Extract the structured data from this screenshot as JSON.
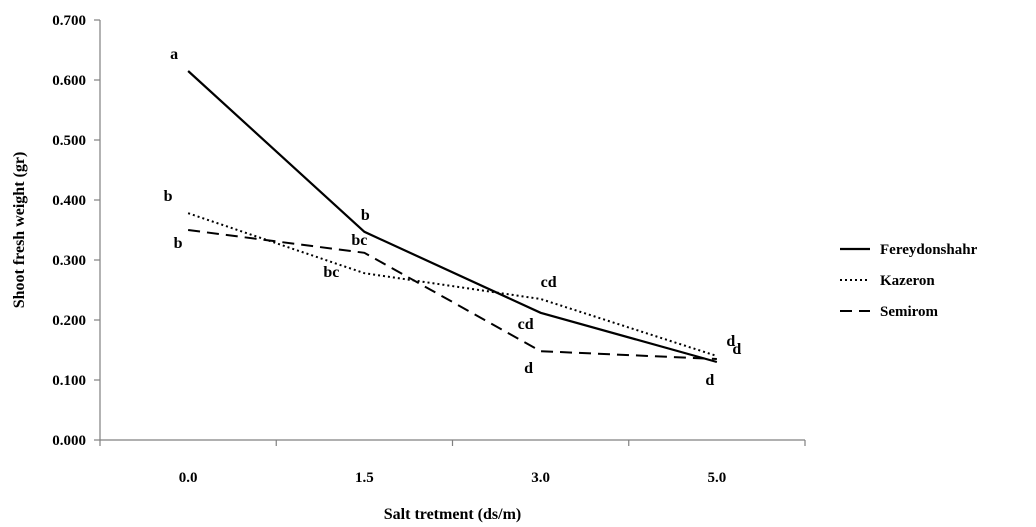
{
  "chart_data": {
    "type": "line",
    "xlabel": "Salt tretment  (ds/m)",
    "ylabel": "Shoot fresh weight (gr)",
    "categories": [
      "0.0",
      "1.5",
      "3.0",
      "5.0"
    ],
    "ylim": [
      0,
      0.7
    ],
    "yticks": [
      "0.000",
      "0.100",
      "0.200",
      "0.300",
      "0.400",
      "0.500",
      "0.600",
      "0.700"
    ],
    "grid": false,
    "legend_position": "right",
    "series": [
      {
        "name": "Fereydonshahr",
        "values": [
          0.615,
          0.347,
          0.212,
          0.13
        ],
        "letters": [
          "a",
          "b",
          "cd",
          "d"
        ],
        "style": "solid",
        "color": "#000000"
      },
      {
        "name": "Kazeron",
        "values": [
          0.378,
          0.278,
          0.235,
          0.14
        ],
        "letters": [
          "b",
          "bc",
          "cd",
          "d"
        ],
        "style": "dotted",
        "color": "#000000"
      },
      {
        "name": "Semirom",
        "values": [
          0.35,
          0.312,
          0.148,
          0.135
        ],
        "letters": [
          "b",
          "bc",
          "d",
          "d"
        ],
        "style": "dashed",
        "color": "#000000"
      }
    ]
  }
}
